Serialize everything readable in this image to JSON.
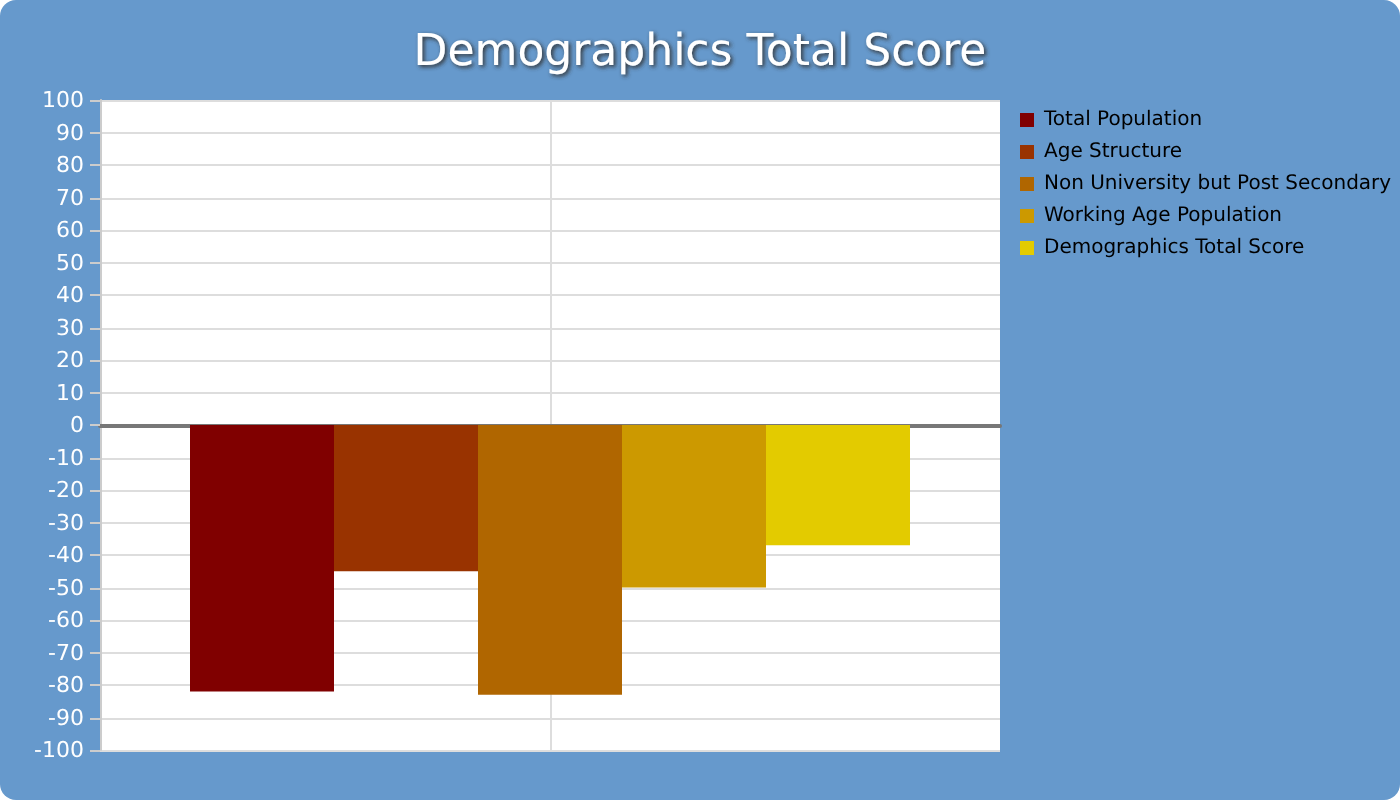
{
  "chart_data": {
    "type": "bar",
    "title": "Demographics Total Score",
    "categories": [
      null
    ],
    "series": [
      {
        "name": "Total Population",
        "color": "#800000",
        "values": [
          -82
        ]
      },
      {
        "name": "Age Structure",
        "color": "#993300",
        "values": [
          -45
        ]
      },
      {
        "name": "Non University but Post Secondary",
        "color": "#b06600",
        "values": [
          -83
        ]
      },
      {
        "name": "Working Age Population",
        "color": "#cc9900",
        "values": [
          -50
        ]
      },
      {
        "name": "Demographics Total Score",
        "color": "#e3cb00",
        "values": [
          -37
        ]
      }
    ],
    "ylim": [
      -100,
      100
    ],
    "yticks": [
      -100,
      -90,
      -80,
      -70,
      -60,
      -50,
      -40,
      -30,
      -20,
      -10,
      0,
      10,
      20,
      30,
      40,
      50,
      60,
      70,
      80,
      90,
      100
    ],
    "grid": true,
    "legend": "right"
  }
}
